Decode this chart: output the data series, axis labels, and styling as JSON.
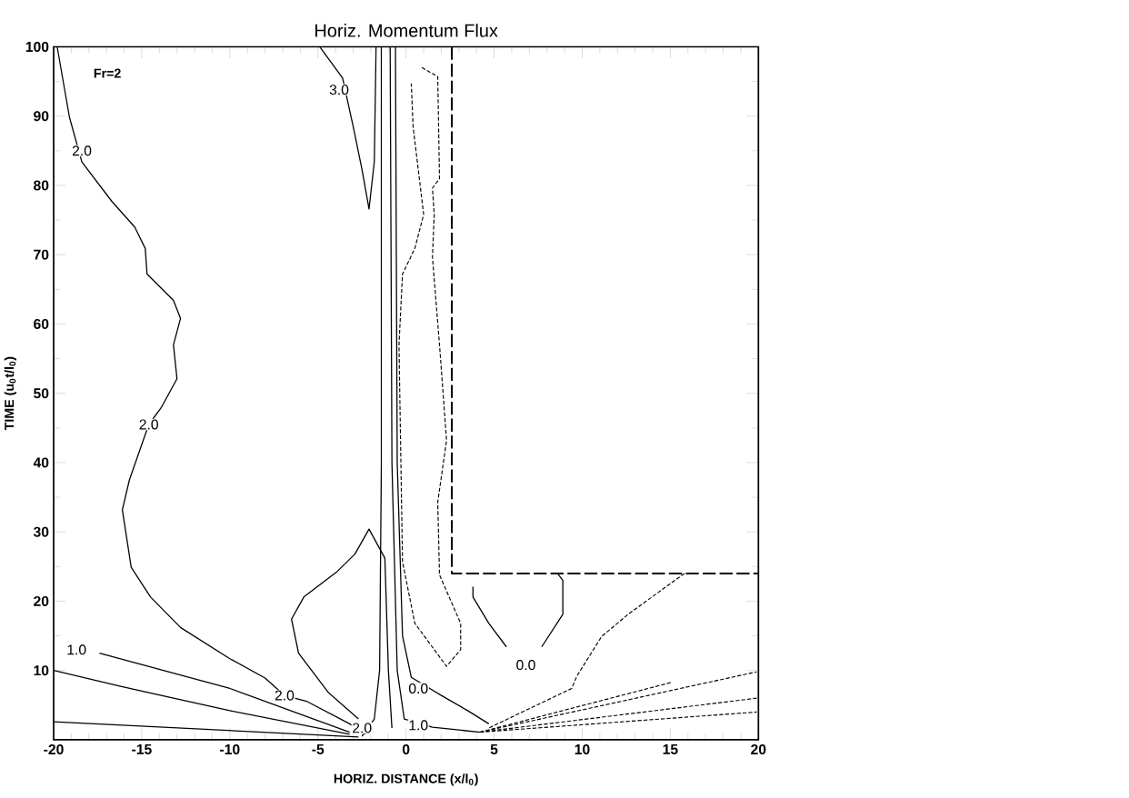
{
  "chart_data": {
    "type": "line",
    "title": "Horiz. Momentum Flux",
    "xlabel": "HORIZ. DISTANCE (x/l$_{0}$)",
    "ylabel": "TIME (u$_{0}$t/l$_{0}$)",
    "xlim": [
      -20,
      20
    ],
    "ylim": [
      0,
      100
    ],
    "xticks": [
      -20,
      -15,
      -10,
      -5,
      0,
      5,
      10,
      15,
      20
    ],
    "yticks": [
      10,
      20,
      30,
      40,
      50,
      60,
      70,
      80,
      90,
      100
    ],
    "series": [
      {
        "color": "#000000",
        "line_style": "solid",
        "x": [
          -19.8,
          -19.1,
          -18.4,
          -16.7,
          -15.4,
          -14.8,
          -14.7,
          -13.2,
          -12.8,
          -13.2,
          -13.0,
          -13.9,
          -14.6,
          -15.7,
          -16.1,
          -15.6,
          -14.5,
          -12.8,
          -10.0,
          -8.0,
          -6.9,
          -5.6,
          -3.2,
          -2.3
        ],
        "values": [
          100,
          89.8,
          83.4,
          77.7,
          74.0,
          70.9,
          67.2,
          63.4,
          60.8,
          57.0,
          52.1,
          47.9,
          45.5,
          37.5,
          33.2,
          24.9,
          20.6,
          16.2,
          11.7,
          8.9,
          6.4,
          5.5,
          2.3,
          0.8
        ]
      },
      {
        "color": "#000000",
        "line_style": "solid",
        "x": [
          -17.4,
          -10.0,
          -3.2
        ],
        "values": [
          12.5,
          7.4,
          1.1
        ]
      },
      {
        "color": "#000000",
        "line_style": "solid",
        "x": [
          -20,
          -16.2,
          -10.0,
          -3.2
        ],
        "values": [
          10.0,
          7.7,
          4.2,
          0.8
        ]
      },
      {
        "color": "#000000",
        "line_style": "solid",
        "x": [
          -20,
          -2.7
        ],
        "values": [
          2.6,
          0.4
        ]
      },
      {
        "color": "#000000",
        "line_style": "solid",
        "x": [
          -2.7,
          -4.4,
          -6.1,
          -6.5,
          -5.8,
          -3.9,
          -2.9,
          -2.1,
          -1.2,
          -1.0,
          -0.8
        ],
        "values": [
          3.0,
          6.8,
          12.5,
          17.4,
          20.6,
          24.3,
          26.8,
          30.4,
          26.2,
          10.0,
          1.7
        ]
      },
      {
        "color": "#000000",
        "line_style": "solid",
        "x": [
          -4.9,
          -3.6,
          -3.0,
          -2.5,
          -2.1,
          -1.8,
          -1.7
        ],
        "values": [
          100,
          95.5,
          88.5,
          82.3,
          76.6,
          83.4,
          100
        ]
      },
      {
        "color": "#000000",
        "line_style": "solid",
        "x": [
          -1.4,
          -1.4,
          -1.5,
          -1.8,
          -2.5
        ],
        "values": [
          100,
          40,
          10,
          3,
          0.5
        ]
      },
      {
        "color": "#000000",
        "line_style": "solid",
        "x": [
          -0.9,
          -0.8,
          -0.5,
          -0.1,
          1.5,
          4.2
        ],
        "values": [
          100,
          40,
          10,
          3,
          1.8,
          1.1
        ]
      },
      {
        "color": "#000000",
        "line_style": "solid",
        "x": [
          -0.6,
          -0.5,
          -0.2,
          0.3,
          2.0,
          3.5,
          4.7
        ],
        "values": [
          100,
          40,
          15,
          9,
          6.4,
          4.2,
          2.3
        ]
      },
      {
        "color": "#000000",
        "line_style": "solid",
        "x": [
          3.8,
          3.8,
          4.7,
          5.7,
          null,
          7.7,
          8.9,
          8.9,
          8.6
        ],
        "values": [
          22.1,
          20.6,
          16.8,
          13.4,
          null,
          13.4,
          18.1,
          23.0,
          24.0
        ]
      },
      {
        "color": "#000000",
        "line_style": "dotted",
        "x": [
          0.9,
          1.8,
          1.9,
          1.5,
          1.6,
          1.5,
          1.9,
          2.3,
          1.8,
          1.9,
          3.1,
          3.1,
          2.3,
          0.5,
          -0.2,
          -0.4,
          -0.2,
          0.5,
          1.0,
          0.4,
          0.3
        ],
        "values": [
          97,
          95.7,
          81,
          79.6,
          75.8,
          69.6,
          57,
          43.2,
          34.3,
          23.8,
          16.8,
          13,
          10.6,
          16.8,
          25.7,
          57,
          67.2,
          70.9,
          75.8,
          88.5,
          94.7
        ]
      },
      {
        "color": "#000000",
        "line_style": "dotted",
        "x": [
          15.8,
          12.6,
          11.1,
          9.7,
          9.4,
          4.7
        ],
        "values": [
          24,
          18.1,
          14.9,
          9.2,
          7.4,
          1.7
        ]
      },
      {
        "color": "#000000",
        "line_style": "dotted",
        "x": [
          4.2,
          19.9
        ],
        "values": [
          1.1,
          9.8
        ]
      },
      {
        "color": "#000000",
        "line_style": "dotted",
        "x": [
          4.2,
          19.9
        ],
        "values": [
          1.1,
          6.0
        ]
      },
      {
        "color": "#000000",
        "line_style": "dotted",
        "x": [
          4.2,
          19.9
        ],
        "values": [
          1.1,
          4.0
        ]
      },
      {
        "color": "#000000",
        "line_style": "dotted",
        "x": [
          4.2,
          15.1
        ],
        "values": [
          1.1,
          8.3
        ]
      },
      {
        "color": "#000000",
        "line_style": "dashed",
        "x": [
          2.6,
          2.6,
          20
        ],
        "values": [
          100,
          24,
          24
        ]
      }
    ],
    "annotations": [
      "Fr=2",
      {
        "text": "3.0",
        "x": -3.8,
        "y": 93.8
      },
      {
        "text": "2.0",
        "x": -18.4,
        "y": 85
      },
      {
        "text": "2.0",
        "x": -14.6,
        "y": 45.5
      },
      {
        "text": "1.0",
        "x": -18.7,
        "y": 13
      },
      {
        "text": "2.0",
        "x": -6.9,
        "y": 6.4
      },
      {
        "text": "2.0",
        "x": -2.5,
        "y": 1.7
      },
      {
        "text": "0.0",
        "x": 0.7,
        "y": 7.4
      },
      {
        "text": "1.0",
        "x": 0.7,
        "y": 2.1
      },
      {
        "text": "0.0",
        "x": 6.8,
        "y": 10.8
      }
    ]
  }
}
